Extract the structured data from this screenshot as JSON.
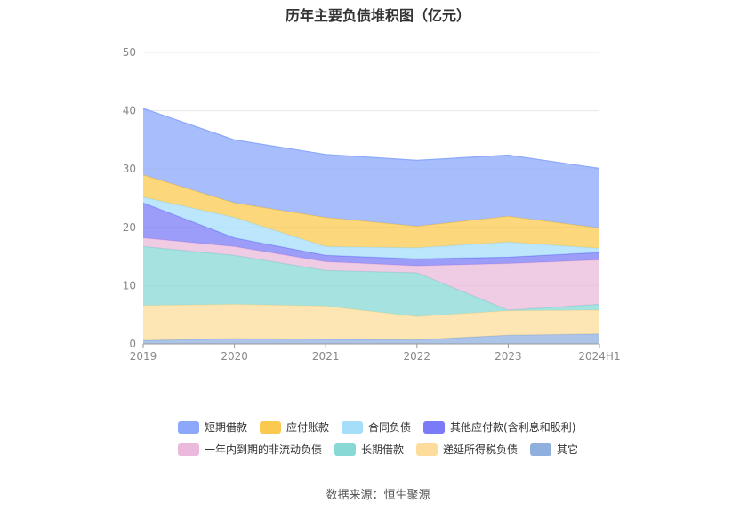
{
  "chart_data": {
    "type": "area",
    "title": "历年主要负债堆积图（亿元）",
    "categories": [
      "2019",
      "2020",
      "2021",
      "2022",
      "2023",
      "2024H1"
    ],
    "ylim": [
      0,
      50
    ],
    "yticks": [
      0,
      10,
      20,
      30,
      40,
      50
    ],
    "grid": true,
    "legend_position": "bottom",
    "stacked": true,
    "series": [
      {
        "name": "其它",
        "color": "#8fb0df",
        "values": [
          0.6,
          0.9,
          0.8,
          0.7,
          1.5,
          1.7
        ]
      },
      {
        "name": "递延所得税负债",
        "color": "#fedc9b",
        "values": [
          6.0,
          5.9,
          5.7,
          4.0,
          4.2,
          4.1
        ]
      },
      {
        "name": "长期借款",
        "color": "#88d9d6",
        "values": [
          10.1,
          8.4,
          6.1,
          7.5,
          0.1,
          1.0
        ]
      },
      {
        "name": "一年内到期的非流动负债",
        "color": "#eab9db",
        "values": [
          1.5,
          1.5,
          1.5,
          1.2,
          8.0,
          7.6
        ]
      },
      {
        "name": "其他应付款(含利息和股利)",
        "color": "#7b7bf7",
        "values": [
          6.0,
          1.5,
          1.1,
          1.2,
          1.1,
          1.3
        ]
      },
      {
        "name": "合同负债",
        "color": "#a6defa",
        "values": [
          1.0,
          3.5,
          1.5,
          1.9,
          2.6,
          0.7
        ]
      },
      {
        "name": "应付账款",
        "color": "#fbc94f",
        "values": [
          3.8,
          2.5,
          5.0,
          3.7,
          4.4,
          3.5
        ]
      },
      {
        "name": "短期借款",
        "color": "#8ba8fb",
        "values": [
          11.4,
          10.8,
          10.8,
          11.3,
          10.5,
          10.2
        ]
      }
    ],
    "legend_order": [
      "短期借款",
      "应付账款",
      "合同负债",
      "其他应付款(含利息和股利)",
      "一年内到期的非流动负债",
      "长期借款",
      "递延所得税负债",
      "其它"
    ]
  },
  "source_label": "数据来源：恒生聚源"
}
